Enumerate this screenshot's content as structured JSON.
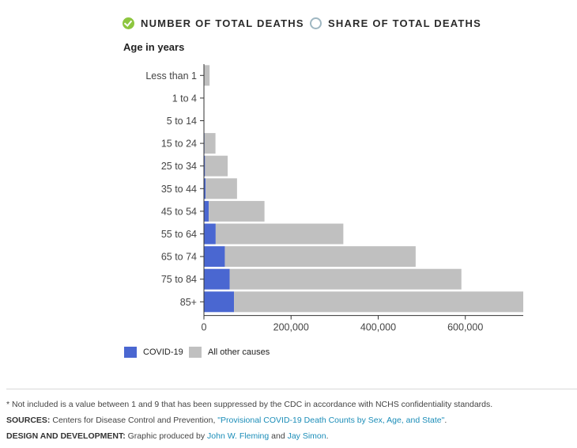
{
  "toggles": {
    "number_label": "NUMBER OF TOTAL DEATHS",
    "share_label": "SHARE OF TOTAL DEATHS",
    "selected": "number"
  },
  "colors": {
    "covid": "#4a67d1",
    "other": "#c0c0c0",
    "toggle_checked": "#8dc63f",
    "link": "#1b8db8"
  },
  "chart_data": {
    "type": "bar",
    "orientation": "horizontal",
    "stacked": true,
    "ylabel": "Age in years",
    "categories": [
      "Less than 1",
      "1 to 4",
      "5 to 14",
      "15 to 24",
      "25 to 34",
      "35 to 44",
      "45 to 54",
      "55 to 64",
      "65 to 74",
      "75 to 84",
      "85+"
    ],
    "series": [
      {
        "name": "COVID-19",
        "values": [
          0,
          0,
          0,
          1500,
          2500,
          4000,
          11000,
          27000,
          48000,
          59000,
          69000
        ]
      },
      {
        "name": "All other causes",
        "values": [
          13000,
          1000,
          1000,
          25000,
          52000,
          72000,
          128000,
          293000,
          438000,
          532000,
          664000
        ]
      }
    ],
    "xlim": [
      0,
      733000
    ],
    "xticks": [
      0,
      200000,
      400000,
      600000
    ],
    "xtick_labels": [
      "0",
      "200,000",
      "400,000",
      "600,000"
    ],
    "grid": false,
    "legend": "bottom-left"
  },
  "footer": {
    "note": "* Not included is a value between 1 and 9 that has been suppressed by the CDC in accordance with NCHS confidentiality standards.",
    "sources_label": "SOURCES:",
    "sources_text": " Centers for Disease Control and Prevention, ",
    "sources_link": "\"Provisional COVID-19 Death Counts by Sex, Age, and State\"",
    "sources_end": ".",
    "design_label": "DESIGN AND DEVELOPMENT:",
    "design_text": " Graphic produced by ",
    "design_author1": "John W. Fleming",
    "design_and": " and ",
    "design_author2": "Jay Simon",
    "design_end": "."
  }
}
